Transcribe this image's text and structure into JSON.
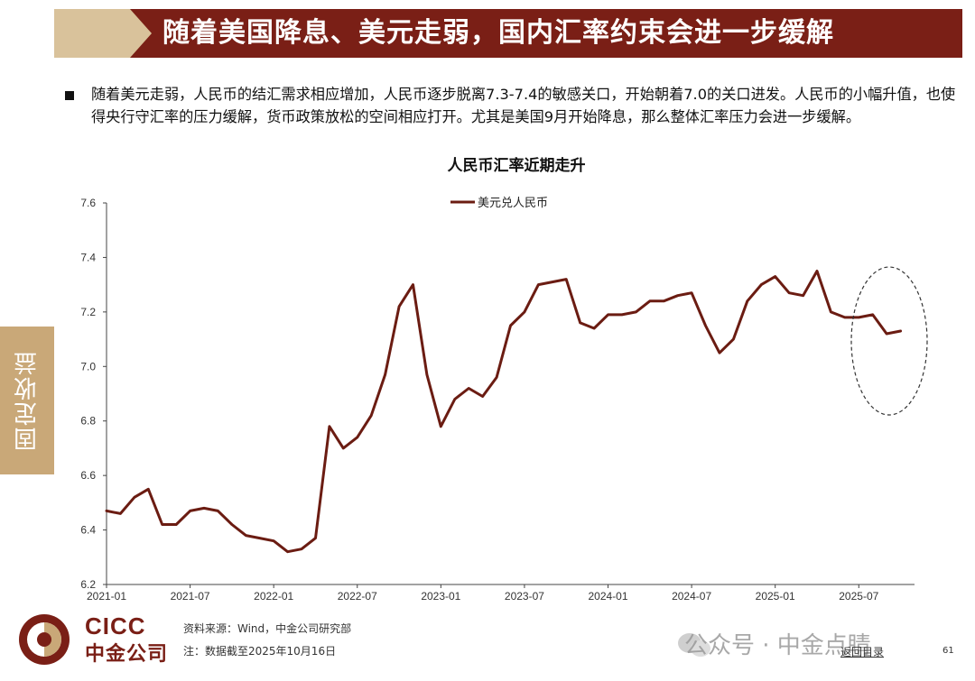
{
  "header": {
    "title": "随着美国降息、美元走弱，国内汇率约束会进一步缓解"
  },
  "body": {
    "bullet": "随着美元走弱，人民币的结汇需求相应增加，人民币逐步脱离7.3-7.4的敏感关口，开始朝着7.0的关口进发。人民币的小幅升值，也使得央行守汇率的压力缓解，货币政策放松的空间相应打开。尤其是美国9月开始降息，那么整体汇率压力会进一步缓解。"
  },
  "side_tab": {
    "label": "固定收益"
  },
  "chart_data": {
    "type": "line",
    "title": "人民币汇率近期走升",
    "ylim": [
      6.2,
      7.6
    ],
    "yticks": [
      "6.2",
      "6.4",
      "6.6",
      "6.8",
      "7.0",
      "7.2",
      "7.4",
      "7.6"
    ],
    "xlim": [
      "2021-01",
      "2025-11"
    ],
    "xticks": [
      "2021-01",
      "2021-07",
      "2022-01",
      "2022-07",
      "2023-01",
      "2023-07",
      "2024-01",
      "2024-07",
      "2025-01",
      "2025-07"
    ],
    "legend_position": "top-center",
    "annotation": "dashed ellipse highlighting 2025-07 to 2025-10",
    "series": [
      {
        "name": "美元兑人民币",
        "color": "#6b1c12",
        "x": [
          "2021-01",
          "2021-02",
          "2021-03",
          "2021-04",
          "2021-05",
          "2021-06",
          "2021-07",
          "2021-08",
          "2021-09",
          "2021-10",
          "2021-11",
          "2021-12",
          "2022-01",
          "2022-02",
          "2022-03",
          "2022-04",
          "2022-05",
          "2022-06",
          "2022-07",
          "2022-08",
          "2022-09",
          "2022-10",
          "2022-11",
          "2022-12",
          "2023-01",
          "2023-02",
          "2023-03",
          "2023-04",
          "2023-05",
          "2023-06",
          "2023-07",
          "2023-08",
          "2023-09",
          "2023-10",
          "2023-11",
          "2023-12",
          "2024-01",
          "2024-02",
          "2024-03",
          "2024-04",
          "2024-05",
          "2024-06",
          "2024-07",
          "2024-08",
          "2024-09",
          "2024-10",
          "2024-11",
          "2024-12",
          "2025-01",
          "2025-02",
          "2025-03",
          "2025-04",
          "2025-05",
          "2025-06",
          "2025-07",
          "2025-08",
          "2025-09",
          "2025-10"
        ],
        "values": [
          6.47,
          6.46,
          6.52,
          6.55,
          6.42,
          6.42,
          6.47,
          6.48,
          6.47,
          6.42,
          6.38,
          6.37,
          6.36,
          6.32,
          6.33,
          6.37,
          6.78,
          6.7,
          6.74,
          6.82,
          6.97,
          7.22,
          7.3,
          6.97,
          6.78,
          6.88,
          6.92,
          6.89,
          6.96,
          7.15,
          7.2,
          7.3,
          7.31,
          7.32,
          7.16,
          7.14,
          7.19,
          7.19,
          7.2,
          7.24,
          7.24,
          7.26,
          7.27,
          7.15,
          7.05,
          7.1,
          7.24,
          7.3,
          7.33,
          7.27,
          7.26,
          7.35,
          7.2,
          7.18,
          7.18,
          7.19,
          7.12,
          7.13
        ]
      }
    ]
  },
  "footer": {
    "logo_en": "CICC",
    "logo_cn": "中金公司",
    "source": "资料来源：Wind，中金公司研究部",
    "note": "注：数据截至2025年10月16日",
    "watermark": "公众号 · 中金点睛",
    "back_link": "返回目录",
    "page": "61"
  }
}
